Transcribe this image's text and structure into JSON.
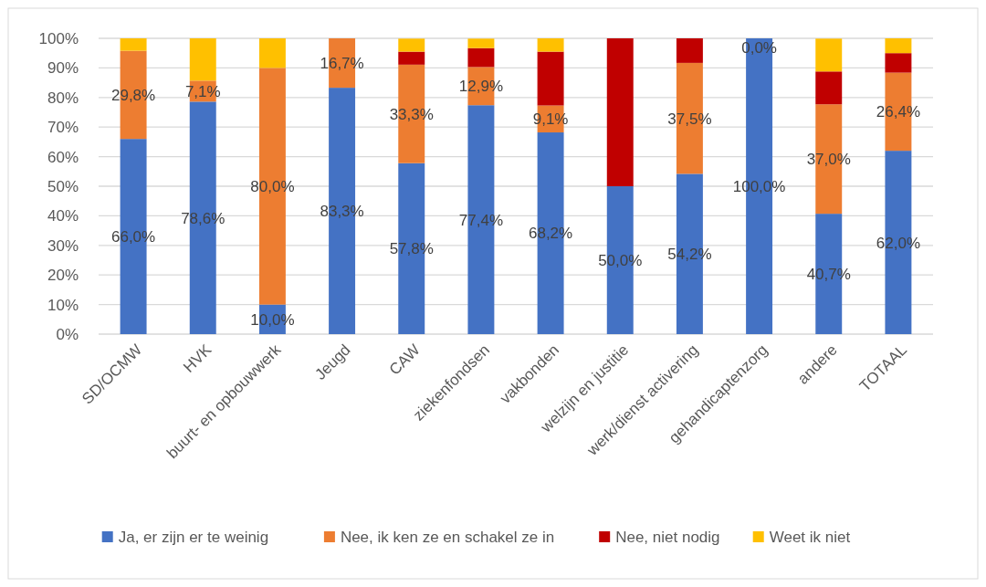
{
  "chart_data": {
    "type": "bar",
    "stacked": true,
    "categories": [
      "SD/OCMW",
      "HVK",
      "buurt- en opbouwwerk",
      "Jeugd",
      "CAW",
      "ziekenfondsen",
      "vakbonden",
      "welzijn en justitie",
      "werk/dienst activering",
      "gehandicaptenzorg",
      "andere",
      "TOTAAL"
    ],
    "series": [
      {
        "name": "Ja, er zijn er te weinig",
        "color": "#4472c4",
        "values": [
          66.0,
          78.6,
          10.0,
          83.3,
          57.8,
          77.4,
          68.2,
          50.0,
          54.2,
          100.0,
          40.7,
          62.0
        ],
        "value_labels": [
          "66,0%",
          "78,6%",
          "10,0%",
          "83,3%",
          "57,8%",
          "77,4%",
          "68,2%",
          "50,0%",
          "54,2%",
          "100,0%",
          "40,7%",
          "62,0%"
        ]
      },
      {
        "name": "Nee, ik ken ze en schakel ze in",
        "color": "#ed7d31",
        "values": [
          29.8,
          7.1,
          80.0,
          16.7,
          33.3,
          12.9,
          9.1,
          0,
          37.5,
          0.0,
          37.0,
          26.4
        ],
        "value_labels": [
          "29,8%",
          "7,1%",
          "80,0%",
          "16,7%",
          "33,3%",
          "12,9%",
          "9,1%",
          null,
          "37,5%",
          "0,0%",
          "37,0%",
          "26,4%"
        ]
      },
      {
        "name": "Nee, niet nodig",
        "color": "#c00000",
        "values": [
          0,
          0,
          0,
          0,
          4.4,
          6.4,
          18.2,
          50.0,
          8.3,
          0,
          11.1,
          6.6
        ]
      },
      {
        "name": "Weet ik niet",
        "color": "#ffc000",
        "values": [
          4.2,
          14.3,
          10.0,
          0,
          4.4,
          3.2,
          4.5,
          0,
          0,
          0,
          11.1,
          5.0
        ]
      }
    ],
    "ylim": [
      0,
      100
    ],
    "yticks": [
      {
        "value": 0,
        "label": "0%"
      },
      {
        "value": 10,
        "label": "10%"
      },
      {
        "value": 20,
        "label": "20%"
      },
      {
        "value": 30,
        "label": "30%"
      },
      {
        "value": 40,
        "label": "40%"
      },
      {
        "value": 50,
        "label": "50%"
      },
      {
        "value": 60,
        "label": "60%"
      },
      {
        "value": 70,
        "label": "70%"
      },
      {
        "value": 80,
        "label": "80%"
      },
      {
        "value": 90,
        "label": "90%"
      },
      {
        "value": 100,
        "label": "100%"
      }
    ],
    "grid": "y",
    "legend": "bottom"
  }
}
